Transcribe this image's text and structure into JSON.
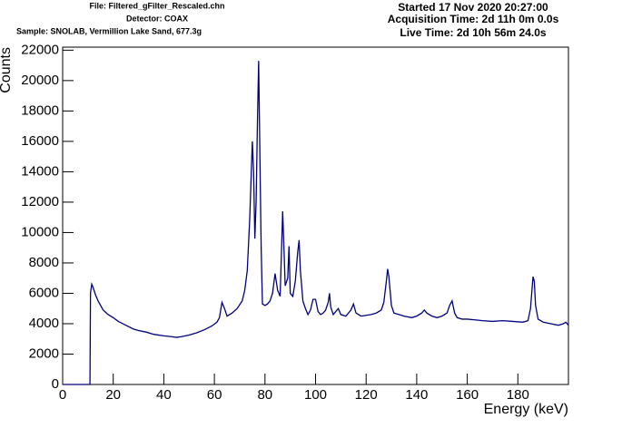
{
  "header": {
    "file": "File: Filtered_gFilter_Rescaled.chn",
    "detector": "Detector: COAX",
    "sample": "Sample: SNOLAB, Vermillion Lake Sand, 677.3g",
    "started": "Started 17 Nov 2020 20:27:00",
    "acquisition": "Acquisition Time: 2d 11h 0m 0.0s",
    "live": "Live Time: 2d 10h 56m 24.0s"
  },
  "chart_data": {
    "type": "line",
    "x_label": "Energy (keV)",
    "y_label": "Counts",
    "xlim": [
      0,
      200
    ],
    "ylim": [
      0,
      22200
    ],
    "xticks": [
      0,
      20,
      40,
      60,
      80,
      100,
      120,
      140,
      160,
      180
    ],
    "yticks": [
      0,
      2000,
      4000,
      6000,
      8000,
      10000,
      12000,
      14000,
      16000,
      18000,
      20000,
      22000
    ],
    "series": [
      {
        "color": "#000080",
        "x": [
          0,
          10.8,
          11,
          11.5,
          12,
          13,
          14,
          15,
          16,
          18,
          20,
          22,
          25,
          28,
          30,
          33,
          36,
          40,
          43,
          45,
          47,
          50,
          53,
          56,
          59,
          61,
          62,
          63,
          64,
          65,
          67,
          69,
          71,
          72,
          73,
          74,
          75,
          75.5,
          76,
          76.5,
          77,
          77.5,
          78,
          78.5,
          79,
          80,
          81,
          82,
          83,
          84,
          85,
          86,
          87,
          87.5,
          88,
          89,
          89.5,
          90,
          91,
          92,
          93,
          93.5,
          94,
          95,
          96,
          97,
          98,
          99,
          100,
          101,
          102,
          103,
          104,
          105,
          105.5,
          106,
          107,
          108,
          109,
          110,
          112,
          114,
          115,
          116,
          118,
          120,
          122,
          124,
          126,
          127,
          128,
          128.5,
          129,
          130,
          131,
          133,
          135,
          138,
          140,
          142,
          143,
          144,
          146,
          148,
          150,
          152,
          153,
          154,
          155,
          156,
          158,
          160,
          163,
          166,
          170,
          174,
          178,
          182,
          184,
          185,
          186,
          186.5,
          187,
          188,
          190,
          193,
          196,
          198,
          199,
          200
        ],
        "values": [
          0,
          0,
          6000,
          6600,
          6400,
          5900,
          5500,
          5200,
          4900,
          4600,
          4400,
          4150,
          3900,
          3650,
          3550,
          3450,
          3300,
          3200,
          3150,
          3100,
          3150,
          3250,
          3400,
          3600,
          3850,
          4100,
          4400,
          5400,
          5000,
          4500,
          4700,
          5000,
          5500,
          6200,
          7500,
          11000,
          16000,
          14000,
          9600,
          12000,
          17000,
          21300,
          15000,
          9000,
          5300,
          5200,
          5300,
          5500,
          6000,
          7300,
          6200,
          5800,
          11400,
          9000,
          6500,
          7000,
          9100,
          6000,
          5800,
          6800,
          8800,
          9500,
          7500,
          5500,
          5000,
          4600,
          4900,
          5600,
          5600,
          4800,
          4600,
          4700,
          4900,
          5400,
          6000,
          5100,
          4600,
          4800,
          5000,
          4600,
          4500,
          4900,
          5300,
          4700,
          4500,
          4550,
          4600,
          4700,
          4900,
          5400,
          6800,
          7600,
          7100,
          5200,
          4700,
          4600,
          4500,
          4400,
          4500,
          4700,
          4900,
          4700,
          4500,
          4400,
          4500,
          4700,
          5200,
          5500,
          4700,
          4400,
          4300,
          4300,
          4250,
          4200,
          4150,
          4200,
          4150,
          4100,
          4200,
          5000,
          7100,
          6800,
          5200,
          4300,
          4100,
          4000,
          3900,
          4000,
          4100,
          3900
        ]
      }
    ]
  }
}
